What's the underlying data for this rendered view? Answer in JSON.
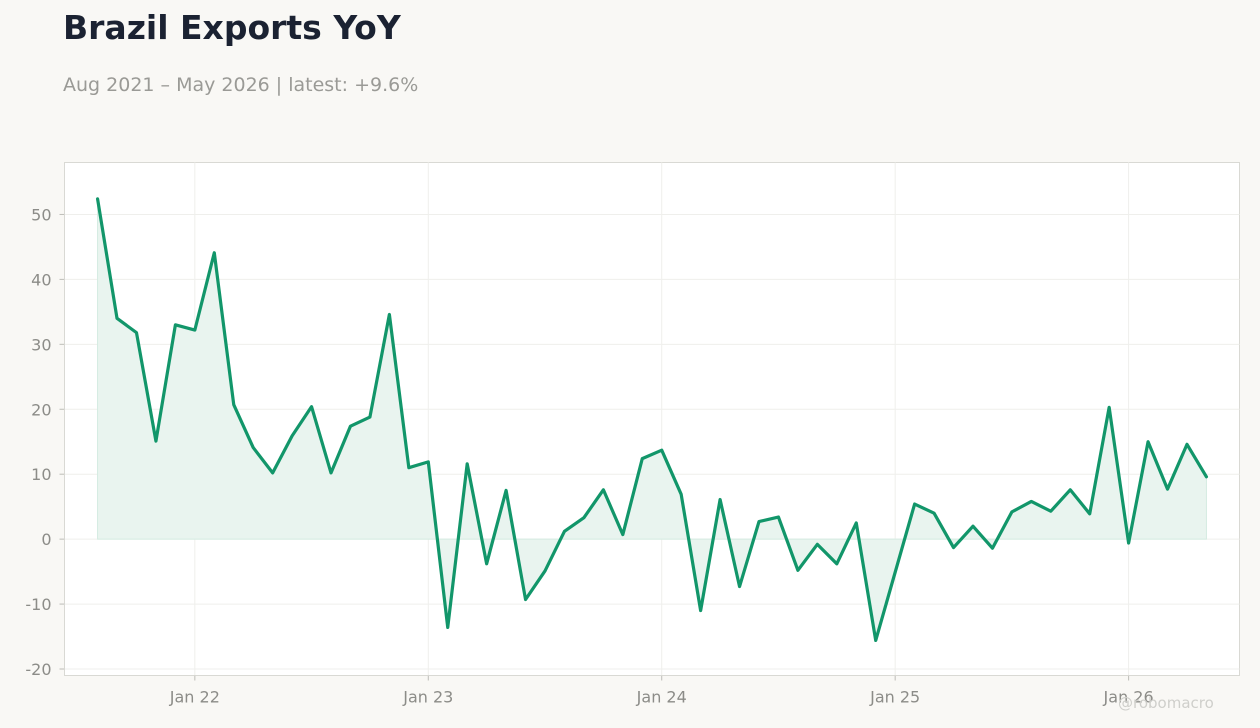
{
  "title": "Brazil Exports YoY",
  "subtitle": "Aug 2021 – May 2026 | latest: +9.6%",
  "credit": "@robomacro",
  "colors": {
    "background": "#f9f8f5",
    "plot_background": "#ffffff",
    "line": "#12966a",
    "fill": "#e9f4ef",
    "title": "#1b2232",
    "muted_text": "#9a9a96"
  },
  "chart_data": {
    "type": "area",
    "title": "Brazil Exports YoY",
    "subtitle": "Aug 2021 – May 2026 | latest: +9.6%",
    "xlabel": "",
    "ylabel": "",
    "x": [
      "2021-08",
      "2021-09",
      "2021-10",
      "2021-11",
      "2021-12",
      "2022-01",
      "2022-02",
      "2022-03",
      "2022-04",
      "2022-05",
      "2022-06",
      "2022-07",
      "2022-08",
      "2022-09",
      "2022-10",
      "2022-11",
      "2022-12",
      "2023-01",
      "2023-02",
      "2023-03",
      "2023-04",
      "2023-05",
      "2023-06",
      "2023-07",
      "2023-08",
      "2023-09",
      "2023-10",
      "2023-11",
      "2023-12",
      "2024-01",
      "2024-02",
      "2024-03",
      "2024-04",
      "2024-05",
      "2024-06",
      "2024-07",
      "2024-08",
      "2024-09",
      "2024-10",
      "2024-11",
      "2024-12",
      "2025-01",
      "2025-02",
      "2025-03",
      "2025-04",
      "2025-05",
      "2025-06",
      "2025-07",
      "2025-08",
      "2025-09",
      "2025-10",
      "2025-11",
      "2025-12",
      "2026-01",
      "2026-02",
      "2026-03",
      "2026-04",
      "2026-05"
    ],
    "series": [
      {
        "values": [
          52.4,
          34.0,
          31.8,
          15.1,
          33.0,
          32.2,
          44.1,
          20.7,
          14.1,
          10.2,
          15.9,
          20.4,
          10.2,
          17.4,
          18.8,
          34.6,
          11.0,
          11.9,
          -13.6,
          11.6,
          -3.8,
          7.5,
          -9.3,
          -4.9,
          1.2,
          3.3,
          7.6,
          0.7,
          12.4,
          13.7,
          6.9,
          -11.0,
          6.1,
          -7.3,
          2.7,
          3.4,
          -4.8,
          -0.8,
          -3.8,
          2.5,
          -15.6,
          -5.1,
          5.4,
          4.0,
          -1.3,
          2.0,
          -1.4,
          4.2,
          5.8,
          4.3,
          7.6,
          3.9,
          20.3,
          -0.6,
          15.0,
          7.7,
          14.6,
          9.6
        ]
      }
    ],
    "ylim": [
      -21,
      58
    ],
    "yticks": [
      "-20",
      "-10",
      "0",
      "10",
      "20",
      "30",
      "40",
      "50"
    ],
    "xticks": [
      {
        "label": "Jan 22",
        "date": "2022-01"
      },
      {
        "label": "Jan 23",
        "date": "2023-01"
      },
      {
        "label": "Jan 24",
        "date": "2024-01"
      },
      {
        "label": "Jan 25",
        "date": "2025-01"
      },
      {
        "label": "Jan 26",
        "date": "2026-01"
      }
    ],
    "grid": true,
    "legend": "none"
  }
}
